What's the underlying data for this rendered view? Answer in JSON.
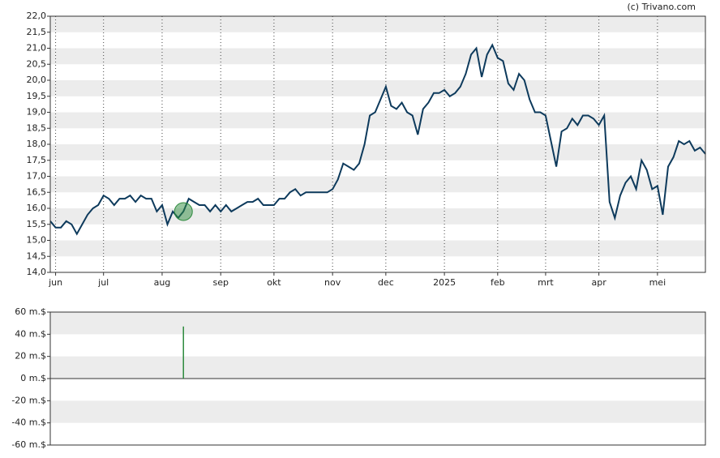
{
  "source": "(c) Trivano.com",
  "chart_data": [
    {
      "type": "line",
      "categories": [
        null,
        "jun",
        null,
        null,
        null,
        null,
        null,
        null,
        null,
        null,
        "jul",
        null,
        null,
        null,
        null,
        null,
        null,
        null,
        null,
        null,
        null,
        "aug",
        null,
        null,
        null,
        null,
        null,
        null,
        null,
        null,
        null,
        null,
        "sep",
        null,
        null,
        null,
        null,
        null,
        null,
        null,
        null,
        null,
        "okt",
        null,
        null,
        null,
        null,
        null,
        null,
        null,
        null,
        null,
        null,
        "nov",
        null,
        null,
        null,
        null,
        null,
        null,
        null,
        null,
        null,
        "dec",
        null,
        null,
        null,
        null,
        null,
        null,
        null,
        null,
        null,
        null,
        "2025",
        null,
        null,
        null,
        null,
        null,
        null,
        null,
        null,
        null,
        "feb",
        null,
        null,
        null,
        null,
        null,
        null,
        null,
        null,
        "mrt",
        null,
        null,
        null,
        null,
        null,
        null,
        null,
        null,
        null,
        "apr",
        null,
        null,
        null,
        null,
        null,
        null,
        null,
        null,
        null,
        null,
        "mei",
        null,
        null,
        null,
        null,
        null,
        null,
        null,
        null,
        null
      ],
      "series": [
        {
          "color": "#0d3a5c",
          "values": [
            15.6,
            15.4,
            15.4,
            15.6,
            15.5,
            15.2,
            15.5,
            15.8,
            16.0,
            16.1,
            16.4,
            16.3,
            16.1,
            16.3,
            16.3,
            16.4,
            16.2,
            16.4,
            16.3,
            16.3,
            15.9,
            16.1,
            15.5,
            15.9,
            15.7,
            15.9,
            16.3,
            16.2,
            16.1,
            16.1,
            15.9,
            16.1,
            15.9,
            16.1,
            15.9,
            16.0,
            16.1,
            16.2,
            16.2,
            16.3,
            16.1,
            16.1,
            16.1,
            16.3,
            16.3,
            16.5,
            16.6,
            16.4,
            16.5,
            16.5,
            16.5,
            16.5,
            16.5,
            16.6,
            16.9,
            17.4,
            17.3,
            17.2,
            17.4,
            18.0,
            18.9,
            19.0,
            19.4,
            19.8,
            19.2,
            19.1,
            19.3,
            19.0,
            18.9,
            18.3,
            19.1,
            19.3,
            19.6,
            19.6,
            19.7,
            19.5,
            19.6,
            19.8,
            20.2,
            20.8,
            21.0,
            20.1,
            20.8,
            21.1,
            20.7,
            20.6,
            19.9,
            19.7,
            20.2,
            20.0,
            19.4,
            19.0,
            19.0,
            18.9,
            18.1,
            17.3,
            18.4,
            18.5,
            18.8,
            18.6,
            18.9,
            18.9,
            18.8,
            18.6,
            18.9,
            16.2,
            15.7,
            16.4,
            16.8,
            17.0,
            16.6,
            17.5,
            17.2,
            16.6,
            16.7,
            15.8,
            17.3,
            17.6,
            18.1,
            18.0,
            18.1,
            17.8,
            17.9,
            17.7
          ]
        }
      ],
      "ylim": [
        14,
        22
      ],
      "yticks": [
        {
          "value": 14,
          "label": "14,0"
        },
        {
          "value": 14.5,
          "label": "14,5"
        },
        {
          "value": 15,
          "label": "15,0"
        },
        {
          "value": 15.5,
          "label": "15,5"
        },
        {
          "value": 16,
          "label": "16,0"
        },
        {
          "value": 16.5,
          "label": "16,5"
        },
        {
          "value": 17,
          "label": "17,0"
        },
        {
          "value": 17.5,
          "label": "17,5"
        },
        {
          "value": 18,
          "label": "18,0"
        },
        {
          "value": 18.5,
          "label": "18,5"
        },
        {
          "value": 19,
          "label": "19,0"
        },
        {
          "value": 19.5,
          "label": "19,5"
        },
        {
          "value": 20,
          "label": "20,0"
        },
        {
          "value": 20.5,
          "label": "20,5"
        },
        {
          "value": 21,
          "label": "21,0"
        },
        {
          "value": 21.5,
          "label": "21,5"
        },
        {
          "value": 22,
          "label": "22,0"
        }
      ],
      "grid": true
    },
    {
      "type": "bar",
      "color": "#2e8b3e",
      "values": [
        null,
        null,
        null,
        null,
        null,
        null,
        null,
        null,
        null,
        null,
        null,
        null,
        null,
        null,
        null,
        null,
        null,
        null,
        null,
        null,
        null,
        null,
        null,
        null,
        null,
        47,
        null,
        null,
        null,
        null,
        null,
        null,
        null,
        null,
        null,
        null,
        null,
        null,
        null,
        null,
        null,
        null,
        null,
        null,
        null,
        null,
        null,
        null,
        null,
        null,
        null,
        null,
        null,
        null,
        null,
        null,
        null,
        null,
        null,
        null,
        null,
        null,
        null,
        null,
        null,
        null,
        null,
        null,
        null,
        null,
        null,
        null,
        null,
        null,
        null,
        null,
        null,
        null,
        null,
        null,
        null,
        null,
        null,
        null,
        null,
        null,
        null,
        null,
        null,
        null,
        null,
        null,
        null,
        null,
        null,
        null,
        null,
        null,
        null,
        null,
        null,
        null,
        null,
        null,
        null,
        null,
        null,
        null,
        null,
        null,
        null,
        null,
        null,
        null,
        null,
        null,
        null,
        null,
        null,
        null,
        null,
        null,
        null,
        null
      ],
      "ylim": [
        -60,
        60
      ],
      "yticks": [
        {
          "value": -60,
          "label": "-60 m.$"
        },
        {
          "value": -40,
          "label": "-40 m.$"
        },
        {
          "value": -20,
          "label": "-20 m.$"
        },
        {
          "value": 0,
          "label": "0 m.$"
        },
        {
          "value": 20,
          "label": "20 m.$"
        },
        {
          "value": 40,
          "label": "40 m.$"
        },
        {
          "value": 60,
          "label": "60 m.$"
        }
      ],
      "grid": true
    }
  ]
}
